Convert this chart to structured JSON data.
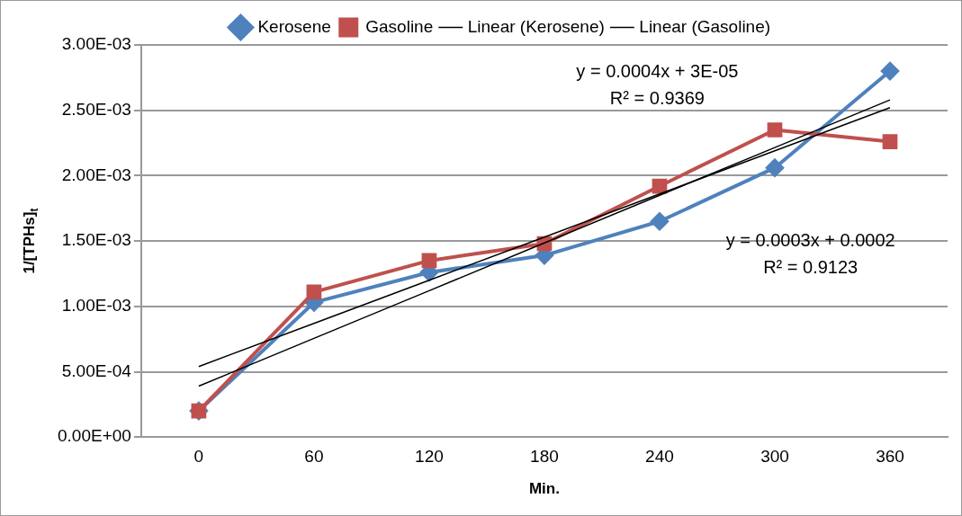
{
  "chart_data": {
    "type": "line",
    "xlabel": "Min.",
    "ylabel": "1/[TPHs]$_{t}$",
    "categories": [
      "0",
      "60",
      "120",
      "180",
      "240",
      "300",
      "360"
    ],
    "series": [
      {
        "name": "Kerosene",
        "color": "#4f81bd",
        "marker": "diamond",
        "values": [
          0.0002,
          0.00103,
          0.00126,
          0.00139,
          0.00165,
          0.00206,
          0.0028
        ]
      },
      {
        "name": "Gasoline",
        "color": "#c0504d",
        "marker": "square",
        "values": [
          0.0002,
          0.00111,
          0.00135,
          0.00148,
          0.00192,
          0.00235,
          0.00226
        ]
      },
      {
        "name": "Linear (Kerosene)",
        "color": "#000000",
        "marker": "none",
        "values": [
          0.00039,
          0.000755,
          0.00112,
          0.001485,
          0.00185,
          0.002215,
          0.00258
        ]
      },
      {
        "name": "Linear (Gasoline)",
        "color": "#000000",
        "marker": "none",
        "values": [
          0.00054,
          0.00087,
          0.0012,
          0.00153,
          0.00186,
          0.00219,
          0.00252
        ]
      }
    ],
    "ylim": [
      0,
      0.003
    ],
    "yticks": [
      {
        "value": 0,
        "label": "0.00E+00"
      },
      {
        "value": 0.0005,
        "label": "5.00E-04"
      },
      {
        "value": 0.001,
        "label": "1.00E-03"
      },
      {
        "value": 0.0015,
        "label": "1.50E-03"
      },
      {
        "value": 0.002,
        "label": "2.00E-03"
      },
      {
        "value": 0.0025,
        "label": "2.50E-03"
      },
      {
        "value": 0.003,
        "label": "3.00E-03"
      }
    ],
    "grid": "y",
    "legend": "top",
    "annotations": [
      "y = 0.0004x + 3E-05\nR² = 0.9369",
      "y = 0.0003x + 0.0002\nR² = 0.9123"
    ]
  }
}
